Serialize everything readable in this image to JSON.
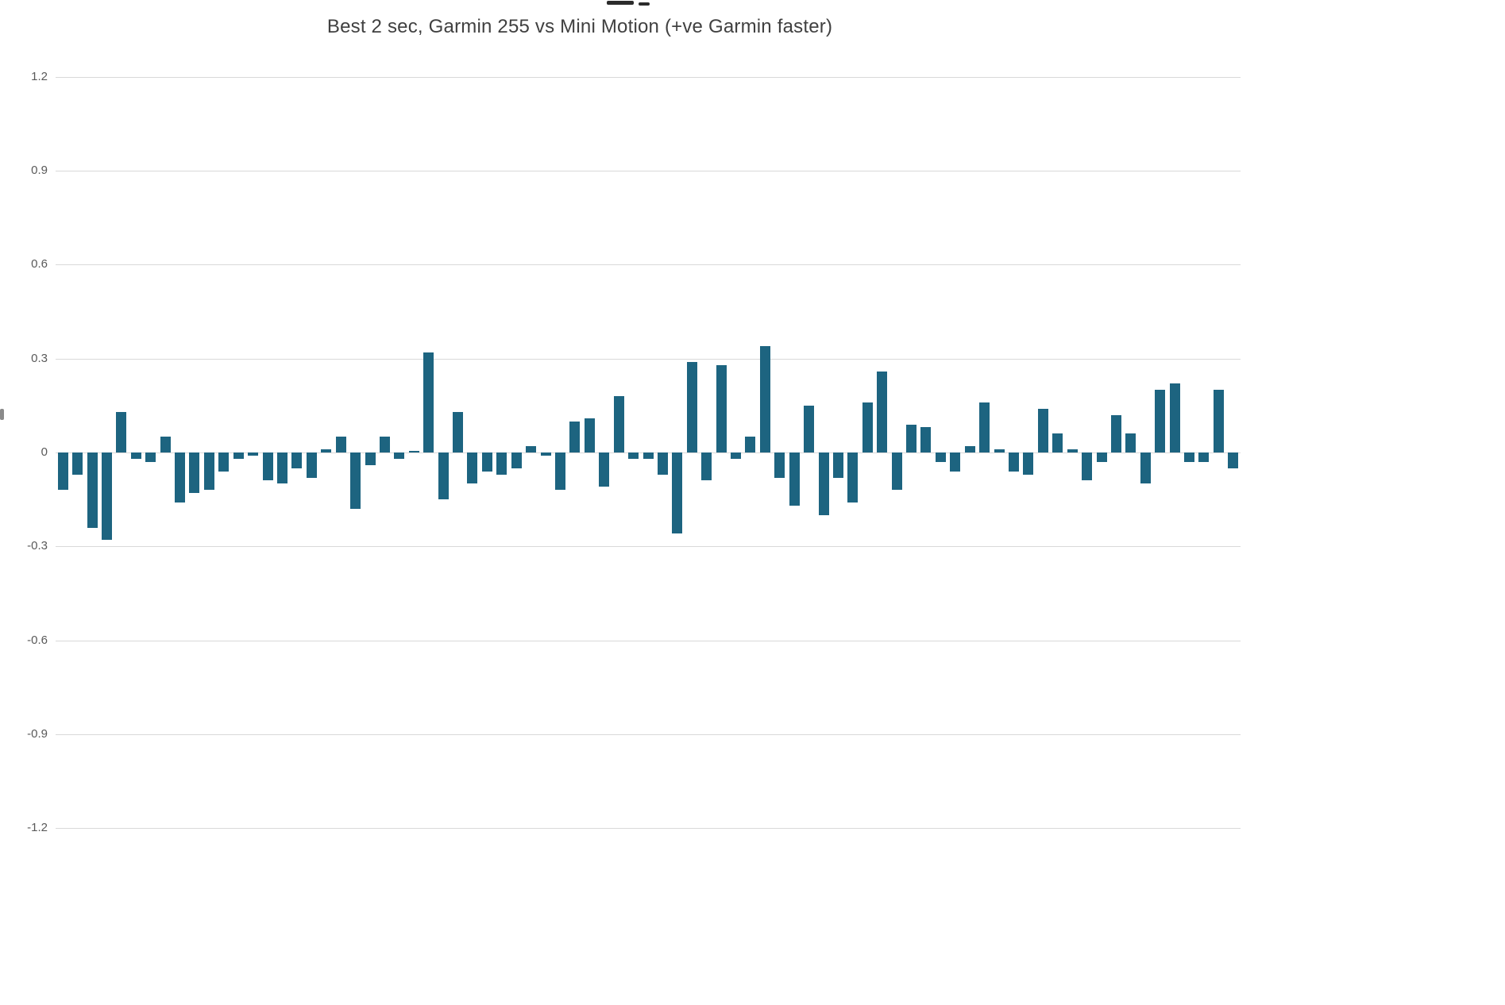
{
  "chart_data": {
    "type": "bar",
    "title": "Best 2 sec, Garmin 255 vs Mini Motion (+ve Garmin faster)",
    "xlabel": "",
    "ylabel": "",
    "ylim": [
      -1.2,
      1.2
    ],
    "yticks": [
      "1.2",
      "0.9",
      "0.6",
      "0.3",
      "0",
      "-0.3",
      "-0.6",
      "-0.9",
      "-1.2"
    ],
    "grid": true,
    "legend_position": "none",
    "bar_color": "#1d6480",
    "gridline_color": "#d9d9d9",
    "values": [
      -0.12,
      -0.07,
      -0.24,
      -0.28,
      0.13,
      -0.02,
      -0.03,
      0.05,
      -0.16,
      -0.13,
      -0.12,
      -0.06,
      -0.02,
      -0.01,
      -0.09,
      -0.1,
      -0.05,
      -0.08,
      0.01,
      0.05,
      -0.18,
      -0.04,
      0.05,
      -0.02,
      0.005,
      0.32,
      -0.15,
      0.13,
      -0.1,
      -0.06,
      -0.07,
      -0.05,
      0.02,
      -0.01,
      -0.12,
      0.1,
      0.11,
      -0.11,
      0.18,
      -0.02,
      -0.02,
      -0.07,
      -0.26,
      0.29,
      -0.09,
      0.28,
      -0.02,
      0.05,
      0.34,
      -0.08,
      -0.17,
      0.15,
      -0.2,
      -0.08,
      -0.16,
      0.16,
      0.26,
      -0.12,
      0.09,
      0.08,
      -0.03,
      -0.06,
      0.02,
      0.16,
      0.01,
      -0.06,
      -0.07,
      0.14,
      0.06,
      0.01,
      -0.09,
      -0.03,
      0.12,
      0.06,
      -0.1,
      0.2,
      0.22,
      -0.03,
      -0.03,
      0.2,
      -0.05
    ]
  }
}
